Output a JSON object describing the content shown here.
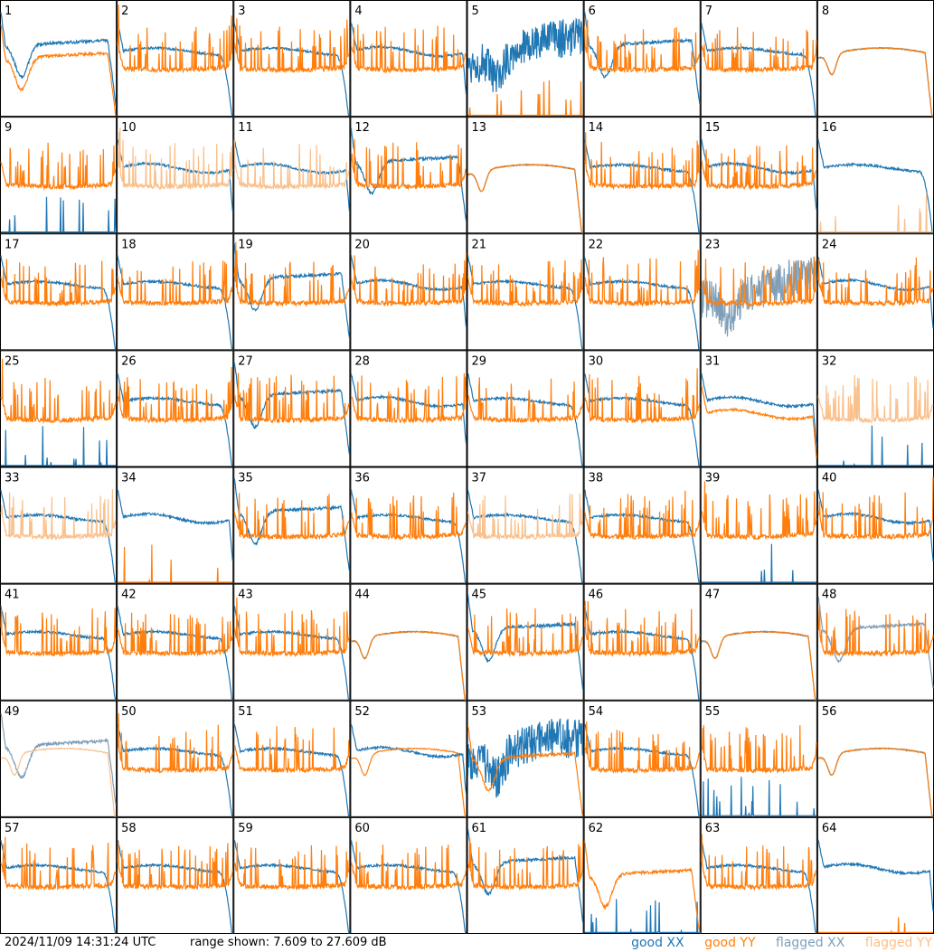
{
  "footer": {
    "timestamp": "2024/11/09 14:31:24 UTC",
    "range_text": "range shown: 7.609 to 27.609 dB"
  },
  "legend": [
    {
      "label": "good XX",
      "color": "#1f77b4"
    },
    {
      "label": "good YY",
      "color": "#ff7f0e"
    },
    {
      "label": "flagged XX",
      "color": "#7f9fb8"
    },
    {
      "label": "flagged YY",
      "color": "#f9c08c"
    }
  ],
  "chart_data": {
    "type": "line",
    "grid": "8x8 small multiples",
    "y_range_db": [
      7.609,
      27.609
    ],
    "panels": [
      {
        "id": "1",
        "xx": "good",
        "yy": "good",
        "xx_shape": "dip",
        "yy_shape": "dip"
      },
      {
        "id": "2",
        "xx": "good",
        "yy": "good",
        "xx_shape": "rolloff",
        "yy_shape": "spiky"
      },
      {
        "id": "3",
        "xx": "good",
        "yy": "good",
        "xx_shape": "rolloff",
        "yy_shape": "spiky"
      },
      {
        "id": "4",
        "xx": "good",
        "yy": "good",
        "xx_shape": "flat",
        "yy_shape": "spiky"
      },
      {
        "id": "5",
        "xx": "good",
        "yy": "good",
        "xx_shape": "noisy",
        "yy_shape": "low"
      },
      {
        "id": "6",
        "xx": "good",
        "yy": "good",
        "xx_shape": "dip",
        "yy_shape": "spiky"
      },
      {
        "id": "7",
        "xx": "good",
        "yy": "good",
        "xx_shape": "rolloff",
        "yy_shape": "spiky"
      },
      {
        "id": "8",
        "xx": "good",
        "yy": "good",
        "xx_shape": "smooth",
        "yy_shape": "smooth"
      },
      {
        "id": "9",
        "xx": "good",
        "yy": "good",
        "xx_shape": "low",
        "yy_shape": "spiky"
      },
      {
        "id": "10",
        "xx": "good",
        "yy": "flagged",
        "xx_shape": "flat",
        "yy_shape": "spiky"
      },
      {
        "id": "11",
        "xx": "good",
        "yy": "flagged",
        "xx_shape": "flat",
        "yy_shape": "spiky"
      },
      {
        "id": "12",
        "xx": "good",
        "yy": "good",
        "xx_shape": "dip",
        "yy_shape": "spiky"
      },
      {
        "id": "13",
        "xx": "good",
        "yy": "good",
        "xx_shape": "smooth",
        "yy_shape": "smooth"
      },
      {
        "id": "14",
        "xx": "good",
        "yy": "good",
        "xx_shape": "rolloff",
        "yy_shape": "spiky"
      },
      {
        "id": "15",
        "xx": "good",
        "yy": "good",
        "xx_shape": "flat",
        "yy_shape": "spiky"
      },
      {
        "id": "16",
        "xx": "good",
        "yy": "flagged",
        "xx_shape": "rolloff",
        "yy_shape": "low"
      },
      {
        "id": "17",
        "xx": "good",
        "yy": "good",
        "xx_shape": "rolloff",
        "yy_shape": "spiky"
      },
      {
        "id": "18",
        "xx": "good",
        "yy": "good",
        "xx_shape": "rolloff",
        "yy_shape": "spiky"
      },
      {
        "id": "19",
        "xx": "good",
        "yy": "good",
        "xx_shape": "dip",
        "yy_shape": "spiky"
      },
      {
        "id": "20",
        "xx": "good",
        "yy": "good",
        "xx_shape": "flat",
        "yy_shape": "spiky"
      },
      {
        "id": "21",
        "xx": "good",
        "yy": "good",
        "xx_shape": "rolloff",
        "yy_shape": "spiky"
      },
      {
        "id": "22",
        "xx": "good",
        "yy": "good",
        "xx_shape": "rolloff",
        "yy_shape": "spiky"
      },
      {
        "id": "23",
        "xx": "flagged",
        "yy": "good",
        "xx_shape": "noisy",
        "yy_shape": "spiky"
      },
      {
        "id": "24",
        "xx": "good",
        "yy": "good",
        "xx_shape": "flat",
        "yy_shape": "spiky"
      },
      {
        "id": "25",
        "xx": "good",
        "yy": "good",
        "xx_shape": "low",
        "yy_shape": "spiky"
      },
      {
        "id": "26",
        "xx": "good",
        "yy": "good",
        "xx_shape": "rolloff",
        "yy_shape": "spiky"
      },
      {
        "id": "27",
        "xx": "good",
        "yy": "good",
        "xx_shape": "dip",
        "yy_shape": "spiky"
      },
      {
        "id": "28",
        "xx": "good",
        "yy": "good",
        "xx_shape": "flat",
        "yy_shape": "spiky"
      },
      {
        "id": "29",
        "xx": "good",
        "yy": "good",
        "xx_shape": "rolloff",
        "yy_shape": "spiky"
      },
      {
        "id": "30",
        "xx": "good",
        "yy": "good",
        "xx_shape": "rolloff",
        "yy_shape": "spiky"
      },
      {
        "id": "31",
        "xx": "good",
        "yy": "good",
        "xx_shape": "flat",
        "yy_shape": "flat"
      },
      {
        "id": "32",
        "xx": "good",
        "yy": "flagged",
        "xx_shape": "low",
        "yy_shape": "spiky"
      },
      {
        "id": "33",
        "xx": "good",
        "yy": "flagged",
        "xx_shape": "rolloff",
        "yy_shape": "spiky"
      },
      {
        "id": "34",
        "xx": "good",
        "yy": "good",
        "xx_shape": "flat",
        "yy_shape": "low"
      },
      {
        "id": "35",
        "xx": "good",
        "yy": "good",
        "xx_shape": "dip",
        "yy_shape": "spiky"
      },
      {
        "id": "36",
        "xx": "good",
        "yy": "good",
        "xx_shape": "rolloff",
        "yy_shape": "spiky"
      },
      {
        "id": "37",
        "xx": "good",
        "yy": "flagged",
        "xx_shape": "rolloff",
        "yy_shape": "spiky"
      },
      {
        "id": "38",
        "xx": "good",
        "yy": "good",
        "xx_shape": "rolloff",
        "yy_shape": "spiky"
      },
      {
        "id": "39",
        "xx": "good",
        "yy": "good",
        "xx_shape": "low",
        "yy_shape": "spiky"
      },
      {
        "id": "40",
        "xx": "good",
        "yy": "good",
        "xx_shape": "flat",
        "yy_shape": "spiky"
      },
      {
        "id": "41",
        "xx": "good",
        "yy": "good",
        "xx_shape": "rolloff",
        "yy_shape": "spiky"
      },
      {
        "id": "42",
        "xx": "good",
        "yy": "good",
        "xx_shape": "rolloff",
        "yy_shape": "spiky"
      },
      {
        "id": "43",
        "xx": "good",
        "yy": "good",
        "xx_shape": "rolloff",
        "yy_shape": "spiky"
      },
      {
        "id": "44",
        "xx": "good",
        "yy": "good",
        "xx_shape": "smooth",
        "yy_shape": "smooth"
      },
      {
        "id": "45",
        "xx": "good",
        "yy": "good",
        "xx_shape": "dip",
        "yy_shape": "spiky"
      },
      {
        "id": "46",
        "xx": "good",
        "yy": "good",
        "xx_shape": "rolloff",
        "yy_shape": "spiky"
      },
      {
        "id": "47",
        "xx": "good",
        "yy": "good",
        "xx_shape": "smooth",
        "yy_shape": "smooth"
      },
      {
        "id": "48",
        "xx": "flagged",
        "yy": "good",
        "xx_shape": "dip",
        "yy_shape": "spiky"
      },
      {
        "id": "49",
        "xx": "flagged",
        "yy": "flagged",
        "xx_shape": "dip",
        "yy_shape": "smooth"
      },
      {
        "id": "50",
        "xx": "good",
        "yy": "good",
        "xx_shape": "rolloff",
        "yy_shape": "spiky"
      },
      {
        "id": "51",
        "xx": "good",
        "yy": "good",
        "xx_shape": "rolloff",
        "yy_shape": "spiky"
      },
      {
        "id": "52",
        "xx": "good",
        "yy": "good",
        "xx_shape": "flat",
        "yy_shape": "smooth"
      },
      {
        "id": "53",
        "xx": "good",
        "yy": "good",
        "xx_shape": "noisy",
        "yy_shape": "dip"
      },
      {
        "id": "54",
        "xx": "good",
        "yy": "good",
        "xx_shape": "rolloff",
        "yy_shape": "spiky"
      },
      {
        "id": "55",
        "xx": "good",
        "yy": "good",
        "xx_shape": "low",
        "yy_shape": "spiky"
      },
      {
        "id": "56",
        "xx": "good",
        "yy": "good",
        "xx_shape": "smooth",
        "yy_shape": "smooth"
      },
      {
        "id": "57",
        "xx": "good",
        "yy": "good",
        "xx_shape": "rolloff",
        "yy_shape": "spiky"
      },
      {
        "id": "58",
        "xx": "good",
        "yy": "good",
        "xx_shape": "rolloff",
        "yy_shape": "spiky"
      },
      {
        "id": "59",
        "xx": "good",
        "yy": "good",
        "xx_shape": "rolloff",
        "yy_shape": "spiky"
      },
      {
        "id": "60",
        "xx": "good",
        "yy": "good",
        "xx_shape": "rolloff",
        "yy_shape": "spiky"
      },
      {
        "id": "61",
        "xx": "good",
        "yy": "good",
        "xx_shape": "dip",
        "yy_shape": "spiky"
      },
      {
        "id": "62",
        "xx": "good",
        "yy": "good",
        "xx_shape": "low",
        "yy_shape": "dip"
      },
      {
        "id": "63",
        "xx": "good",
        "yy": "good",
        "xx_shape": "rolloff",
        "yy_shape": "spiky"
      },
      {
        "id": "64",
        "xx": "good",
        "yy": "good",
        "xx_shape": "flat",
        "yy_shape": "low"
      }
    ]
  }
}
